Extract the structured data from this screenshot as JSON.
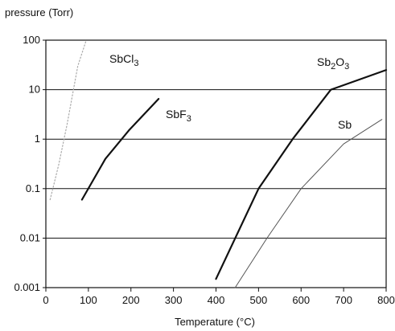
{
  "chart_data": {
    "type": "line",
    "ylabel": "pressure (Torr)",
    "xlabel": "Temperature (°C)",
    "xlim": [
      0,
      800
    ],
    "ylim": [
      0.001,
      100
    ],
    "yscale": "log",
    "grid": "horizontal",
    "legend": "none",
    "x_ticks": [
      "0",
      "100",
      "200",
      "300",
      "400",
      "500",
      "600",
      "700",
      "800"
    ],
    "y_ticks": [
      "0.001",
      "0.01",
      "0.1",
      "1",
      "10",
      "100"
    ],
    "series": [
      {
        "name": "SbCl3",
        "label_base": "SbCl",
        "label_sub": "3",
        "color": "#aaaaaa",
        "style": "dotted",
        "points": [
          [
            10,
            0.06
          ],
          [
            30,
            0.3
          ],
          [
            50,
            2
          ],
          [
            75,
            30
          ],
          [
            95,
            100
          ]
        ]
      },
      {
        "name": "SbF3",
        "label_base": "SbF",
        "label_sub": "3",
        "color": "#111111",
        "style": "solid",
        "points": [
          [
            85,
            0.06
          ],
          [
            140,
            0.4
          ],
          [
            195,
            1.5
          ],
          [
            265,
            6.5
          ]
        ]
      },
      {
        "name": "Sb2O3",
        "label_base": "Sb",
        "label_sub": "2",
        "label_base2": "O",
        "label_sub2": "3",
        "color": "#111111",
        "style": "solid",
        "points": [
          [
            400,
            0.0015
          ],
          [
            500,
            0.1
          ],
          [
            580,
            1
          ],
          [
            670,
            10
          ],
          [
            800,
            25
          ]
        ]
      },
      {
        "name": "Sb",
        "label_base": "Sb",
        "color": "#555555",
        "style": "solid-thin",
        "points": [
          [
            445,
            0.001
          ],
          [
            520,
            0.01
          ],
          [
            600,
            0.1
          ],
          [
            700,
            0.8
          ],
          [
            790,
            2.5
          ]
        ]
      }
    ]
  }
}
